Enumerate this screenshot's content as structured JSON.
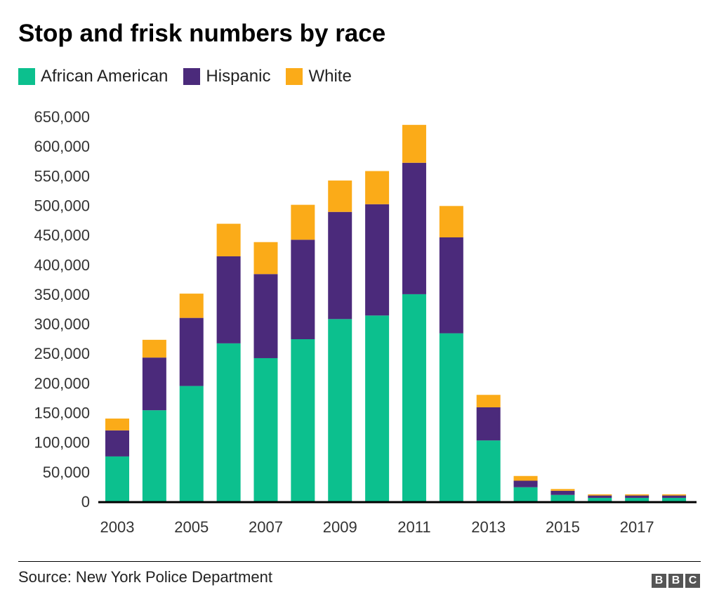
{
  "chart_data": {
    "type": "bar",
    "stacked": true,
    "title": "Stop and frisk numbers by race",
    "categories": [
      "2003",
      "2004",
      "2005",
      "2006",
      "2007",
      "2008",
      "2009",
      "2010",
      "2011",
      "2012",
      "2013",
      "2014",
      "2015",
      "2016",
      "2017",
      "2018"
    ],
    "x_tick_labels": [
      "2003",
      "2005",
      "2007",
      "2009",
      "2011",
      "2013",
      "2015",
      "2017"
    ],
    "y_tick_labels": [
      "0",
      "50,000",
      "100,000",
      "150,000",
      "200,000",
      "250,000",
      "300,000",
      "350,000",
      "400,000",
      "450,000",
      "500,000",
      "550,000",
      "600,000",
      "650,000"
    ],
    "ylim": [
      0,
      650000
    ],
    "grid": false,
    "legend_position": "top-left",
    "series": [
      {
        "name": "African American",
        "color": "#0cc08e",
        "values": [
          76000,
          154000,
          195000,
          267000,
          242000,
          274000,
          308000,
          314000,
          350000,
          284000,
          103000,
          24000,
          11000,
          6000,
          6000,
          6000
        ]
      },
      {
        "name": "Hispanic",
        "color": "#4b2a7b",
        "values": [
          44000,
          89000,
          115000,
          147000,
          142000,
          168000,
          181000,
          188000,
          222000,
          162000,
          56000,
          11000,
          7000,
          4000,
          4000,
          4000
        ]
      },
      {
        "name": "White",
        "color": "#fbab18",
        "values": [
          20000,
          30000,
          41000,
          55000,
          54000,
          59000,
          53000,
          56000,
          64000,
          53000,
          21000,
          8000,
          3000,
          2000,
          2000,
          2000
        ]
      }
    ]
  },
  "source": "Source: New York Police Department",
  "logo": "BBC"
}
